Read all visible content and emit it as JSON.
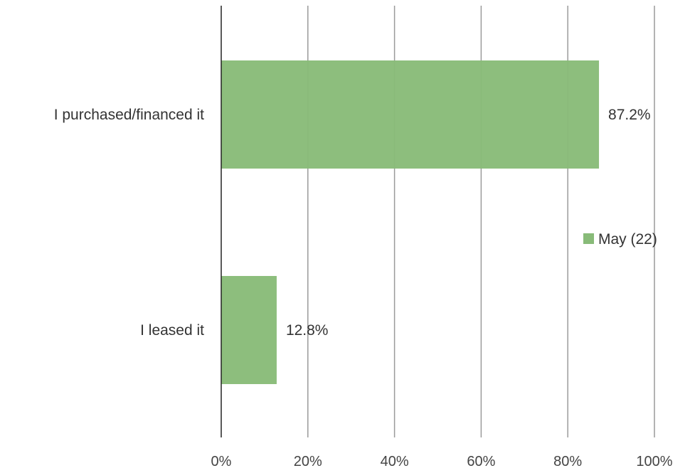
{
  "chart_data": {
    "type": "bar",
    "orientation": "horizontal",
    "categories": [
      "I purchased/financed it",
      "I leased it"
    ],
    "series": [
      {
        "name": "May (22)",
        "values": [
          87.2,
          12.8
        ],
        "data_labels": [
          "87.2%",
          "12.8%"
        ],
        "color": "#88bb78"
      }
    ],
    "x_ticks": [
      "0%",
      "20%",
      "40%",
      "60%",
      "80%",
      "100%"
    ],
    "xlim": [
      0,
      100
    ],
    "grid": true,
    "legend_position": "right"
  }
}
